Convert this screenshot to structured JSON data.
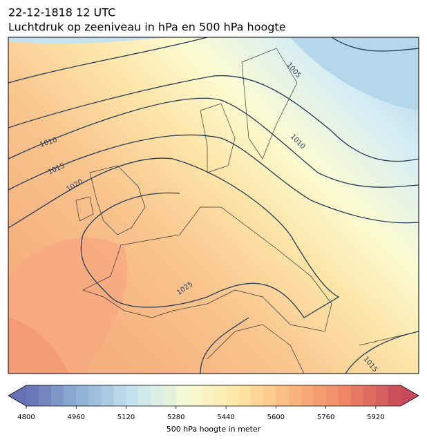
{
  "map": {
    "title": "22-12-1818 12 UTC",
    "subtitle": "Luchtdruk op zeeniveau in hPa en 500 hPa hoogte",
    "contour_labels": [
      "1005",
      "1010",
      "1015",
      "1020",
      "1025",
      "1010",
      "1015"
    ],
    "colorbar": {
      "label": "500 hPa hoogte in meter",
      "range": [
        4800,
        6000
      ],
      "step": 40,
      "ticks": [
        4800,
        4960,
        5120,
        5280,
        5440,
        5600,
        5760,
        5920
      ],
      "colors": [
        "#6670b5",
        "#8fb2d6",
        "#c6e3ef",
        "#f6f9d4",
        "#fde5a3",
        "#f9b57c",
        "#ee8465",
        "#c84a5a"
      ]
    }
  }
}
